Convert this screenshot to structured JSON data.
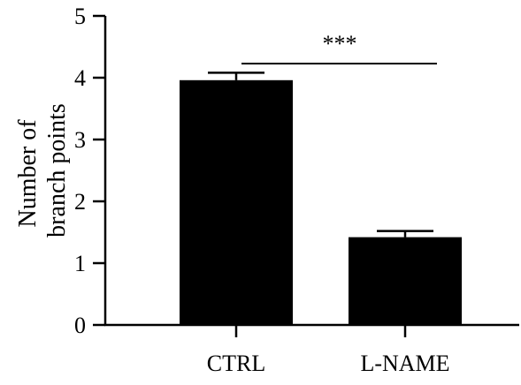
{
  "chart_data": {
    "type": "bar",
    "categories": [
      "CTRL",
      "L-NAME"
    ],
    "values": [
      3.96,
      1.42
    ],
    "error": [
      0.12,
      0.1
    ],
    "ylabel_lines": [
      "Number of",
      "branch points"
    ],
    "xlabel": "",
    "ylim": [
      0,
      5
    ],
    "yticks": [
      0,
      1,
      2,
      3,
      4,
      5
    ],
    "ytick_labels": [
      "0",
      "1",
      "2",
      "3",
      "4",
      "5"
    ],
    "grid": false,
    "legend": "none",
    "bar_color": "#000000",
    "significance": {
      "label": "***",
      "between": [
        "CTRL",
        "L-NAME"
      ]
    }
  }
}
